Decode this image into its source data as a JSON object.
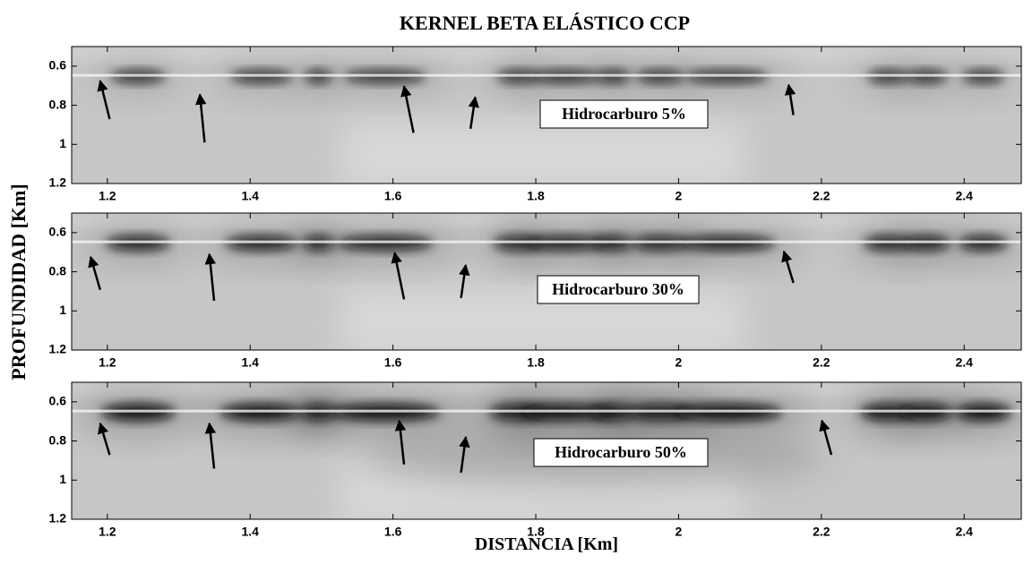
{
  "chart_data": {
    "type": "heatmap",
    "title": "KERNEL BETA ELÁSTICO CCP",
    "xlabel": "DISTANCIA [Km]",
    "ylabel": "PROFUNDIDAD [Km]",
    "panels": [
      {
        "annotation": "Hidrocarburo 5%",
        "xlim": [
          1.15,
          2.48
        ],
        "ylim": [
          0.5,
          1.2
        ],
        "xticks": [
          1.2,
          1.4,
          1.6,
          1.8,
          2,
          2.2,
          2.4
        ],
        "yticks": [
          0.6,
          0.8,
          1,
          1.2
        ]
      },
      {
        "annotation": "Hidrocarburo 30%",
        "xlim": [
          1.15,
          2.48
        ],
        "ylim": [
          0.5,
          1.2
        ],
        "xticks": [
          1.2,
          1.4,
          1.6,
          1.8,
          2,
          2.2,
          2.4
        ],
        "yticks": [
          0.6,
          0.8,
          1,
          1.2
        ]
      },
      {
        "annotation": "Hidrocarburo 50%",
        "xlim": [
          1.15,
          2.48
        ],
        "ylim": [
          0.5,
          1.2
        ],
        "xticks": [
          1.2,
          1.4,
          1.6,
          1.8,
          2,
          2.2,
          2.4
        ],
        "yticks": [
          0.6,
          0.8,
          1,
          1.2
        ]
      }
    ]
  }
}
